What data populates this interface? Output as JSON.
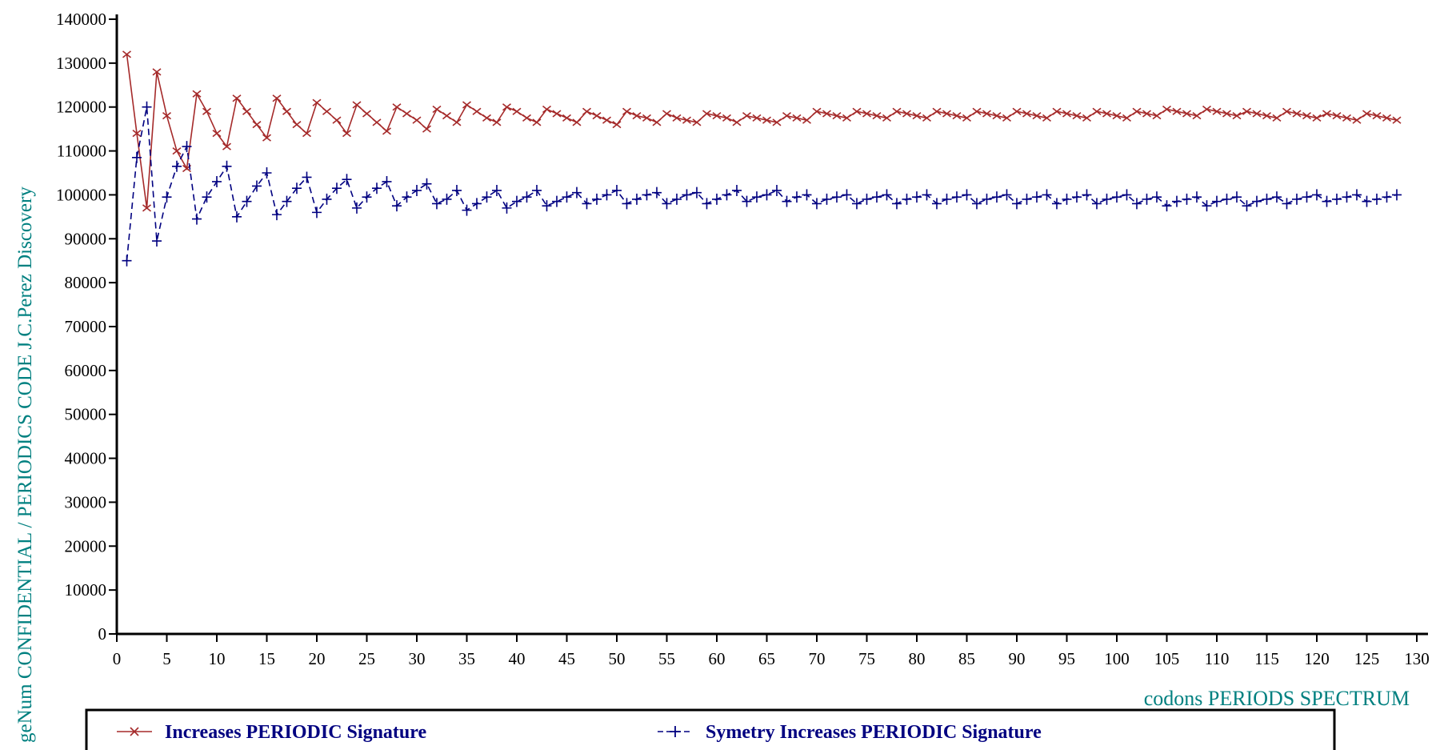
{
  "chart_data": {
    "type": "line",
    "xlabel": "codons PERIODS SPECTRUM",
    "ylabel": "geNum CONFIDENTIAL / PERIODICS CODE J.C.Perez Discovery",
    "xlim": [
      0,
      130
    ],
    "ylim": [
      0,
      140000
    ],
    "x_ticks": [
      0,
      5,
      10,
      15,
      20,
      25,
      30,
      35,
      40,
      45,
      50,
      55,
      60,
      65,
      70,
      75,
      80,
      85,
      90,
      95,
      100,
      105,
      110,
      115,
      120,
      125,
      130
    ],
    "y_ticks": [
      0,
      10000,
      20000,
      30000,
      40000,
      50000,
      60000,
      70000,
      80000,
      90000,
      100000,
      110000,
      120000,
      130000,
      140000
    ],
    "legend_position": "bottom",
    "series": [
      {
        "name": "Increases PERIODIC Signature",
        "color": "#a52a2a",
        "marker": "x",
        "line": "solid",
        "x": [
          1,
          2,
          3,
          4,
          5,
          6,
          7,
          8,
          9,
          10,
          11,
          12,
          13,
          14,
          15,
          16,
          17,
          18,
          19,
          20,
          21,
          22,
          23,
          24,
          25,
          26,
          27,
          28,
          29,
          30,
          31,
          32,
          33,
          34,
          35,
          36,
          37,
          38,
          39,
          40,
          41,
          42,
          43,
          44,
          45,
          46,
          47,
          48,
          49,
          50,
          51,
          52,
          53,
          54,
          55,
          56,
          57,
          58,
          59,
          60,
          61,
          62,
          63,
          64,
          65,
          66,
          67,
          68,
          69,
          70,
          71,
          72,
          73,
          74,
          75,
          76,
          77,
          78,
          79,
          80,
          81,
          82,
          83,
          84,
          85,
          86,
          87,
          88,
          89,
          90,
          91,
          92,
          93,
          94,
          95,
          96,
          97,
          98,
          99,
          100,
          101,
          102,
          103,
          104,
          105,
          106,
          107,
          108,
          109,
          110,
          111,
          112,
          113,
          114,
          115,
          116,
          117,
          118,
          119,
          120,
          121,
          122,
          123,
          124,
          125,
          126,
          127,
          128
        ],
        "values": [
          132000,
          114000,
          97000,
          128000,
          118000,
          110000,
          106000,
          123000,
          119000,
          114000,
          111000,
          122000,
          119000,
          116000,
          113000,
          122000,
          119000,
          116000,
          114000,
          121000,
          119000,
          117000,
          114000,
          120500,
          118500,
          116500,
          114500,
          120000,
          118500,
          117000,
          115000,
          119500,
          118000,
          116500,
          120500,
          119000,
          117500,
          116500,
          120000,
          119000,
          117500,
          116500,
          119500,
          118500,
          117500,
          116500,
          119000,
          118000,
          117000,
          116000,
          119000,
          118000,
          117500,
          116500,
          118500,
          117500,
          117000,
          116500,
          118500,
          118000,
          117500,
          116500,
          118000,
          117500,
          117000,
          116500,
          118000,
          117500,
          117000,
          119000,
          118500,
          118000,
          117500,
          119000,
          118500,
          118000,
          117500,
          119000,
          118500,
          118000,
          117500,
          119000,
          118500,
          118000,
          117500,
          119000,
          118500,
          118000,
          117500,
          119000,
          118500,
          118000,
          117500,
          119000,
          118500,
          118000,
          117500,
          119000,
          118500,
          118000,
          117500,
          119000,
          118500,
          118000,
          119500,
          119000,
          118500,
          118000,
          119500,
          119000,
          118500,
          118000,
          119000,
          118500,
          118000,
          117500,
          119000,
          118500,
          118000,
          117500,
          118500,
          118000,
          117500,
          117000,
          118500,
          118000,
          117500,
          117000
        ]
      },
      {
        "name": "Symetry Increases PERIODIC Signature",
        "color": "#000080",
        "marker": "+",
        "line": "dashed",
        "x": [
          1,
          2,
          3,
          4,
          5,
          6,
          7,
          8,
          9,
          10,
          11,
          12,
          13,
          14,
          15,
          16,
          17,
          18,
          19,
          20,
          21,
          22,
          23,
          24,
          25,
          26,
          27,
          28,
          29,
          30,
          31,
          32,
          33,
          34,
          35,
          36,
          37,
          38,
          39,
          40,
          41,
          42,
          43,
          44,
          45,
          46,
          47,
          48,
          49,
          50,
          51,
          52,
          53,
          54,
          55,
          56,
          57,
          58,
          59,
          60,
          61,
          62,
          63,
          64,
          65,
          66,
          67,
          68,
          69,
          70,
          71,
          72,
          73,
          74,
          75,
          76,
          77,
          78,
          79,
          80,
          81,
          82,
          83,
          84,
          85,
          86,
          87,
          88,
          89,
          90,
          91,
          92,
          93,
          94,
          95,
          96,
          97,
          98,
          99,
          100,
          101,
          102,
          103,
          104,
          105,
          106,
          107,
          108,
          109,
          110,
          111,
          112,
          113,
          114,
          115,
          116,
          117,
          118,
          119,
          120,
          121,
          122,
          123,
          124,
          125,
          126,
          127,
          128
        ],
        "values": [
          85000,
          108500,
          120000,
          89500,
          99500,
          106500,
          111000,
          94500,
          99500,
          103000,
          106500,
          95000,
          98500,
          102000,
          105000,
          95500,
          98500,
          101500,
          104000,
          96000,
          99000,
          101500,
          103500,
          97000,
          99500,
          101500,
          103000,
          97500,
          99500,
          101000,
          102500,
          98000,
          99000,
          101000,
          96500,
          98000,
          99500,
          101000,
          97000,
          98500,
          99500,
          101000,
          97500,
          98500,
          99500,
          100500,
          98000,
          99000,
          100000,
          101000,
          98000,
          99000,
          100000,
          100500,
          98000,
          99000,
          100000,
          100500,
          98000,
          99000,
          100000,
          101000,
          98500,
          99500,
          100000,
          101000,
          98500,
          99500,
          100000,
          98000,
          99000,
          99500,
          100000,
          98000,
          99000,
          99500,
          100000,
          98000,
          99000,
          99500,
          100000,
          98000,
          99000,
          99500,
          100000,
          98000,
          99000,
          99500,
          100000,
          98000,
          99000,
          99500,
          100000,
          98000,
          99000,
          99500,
          100000,
          98000,
          99000,
          99500,
          100000,
          98000,
          99000,
          99500,
          97500,
          98500,
          99000,
          99500,
          97500,
          98500,
          99000,
          99500,
          97500,
          98500,
          99000,
          99500,
          98000,
          99000,
          99500,
          100000,
          98500,
          99000,
          99500,
          100000,
          98500,
          99000,
          99500,
          100000
        ]
      }
    ]
  }
}
